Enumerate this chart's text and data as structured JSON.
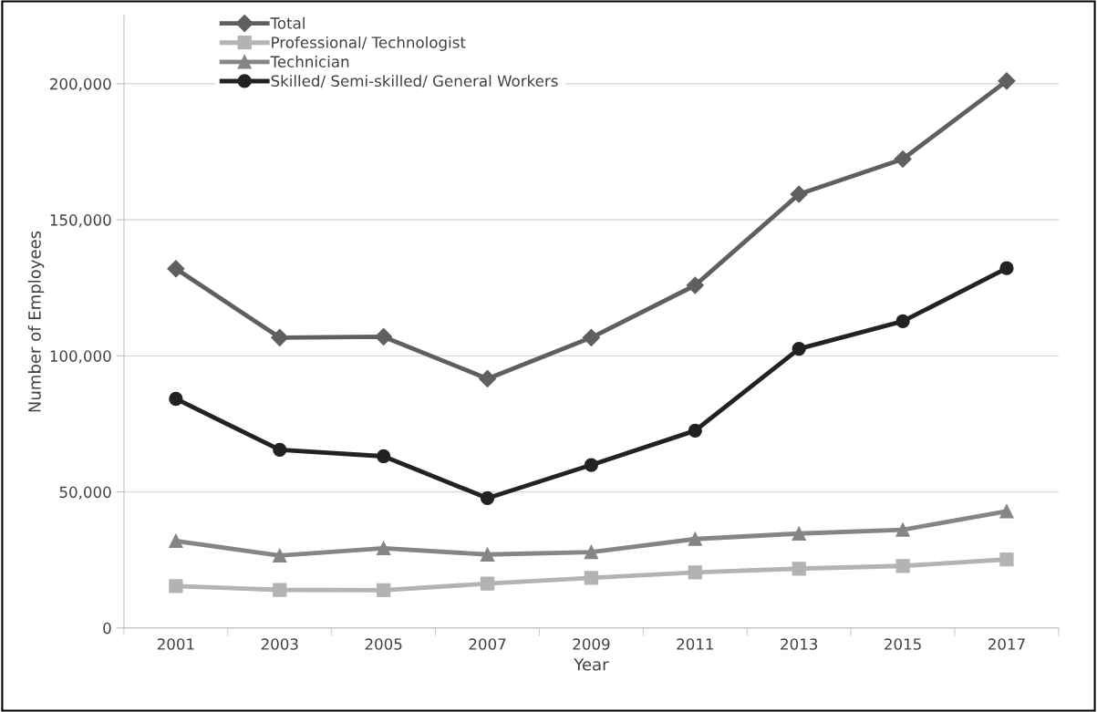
{
  "chart_data": {
    "type": "line",
    "xlabel": "Year",
    "ylabel": "Number of Employees",
    "categories": [
      "2001",
      "2003",
      "2005",
      "2007",
      "2009",
      "2011",
      "2013",
      "2015",
      "2017"
    ],
    "series": [
      {
        "name": "Total",
        "color": "#5f5f5f",
        "marker": "diamond",
        "values": [
          132000,
          106700,
          107000,
          91600,
          106700,
          125900,
          159400,
          172300,
          201000
        ]
      },
      {
        "name": "Professional/ Technologist",
        "color": "#b3b3b3",
        "marker": "square",
        "values": [
          15400,
          14000,
          13900,
          16300,
          18400,
          20400,
          21800,
          22800,
          25200
        ]
      },
      {
        "name": "Technician",
        "color": "#858585",
        "marker": "triangle",
        "values": [
          32000,
          26600,
          29300,
          27000,
          27900,
          32700,
          34700,
          36100,
          42900
        ]
      },
      {
        "name": "Skilled/ Semi-skilled/ General Workers",
        "color": "#222222",
        "marker": "circle",
        "values": [
          84200,
          65500,
          63100,
          47700,
          59900,
          72500,
          102600,
          112700,
          132200
        ]
      }
    ],
    "ylim": [
      0,
      225000
    ],
    "yticks": [
      {
        "value": 0,
        "label": "0"
      },
      {
        "value": 50000,
        "label": "50,000"
      },
      {
        "value": 100000,
        "label": "100,000"
      },
      {
        "value": 150000,
        "label": "150,000"
      },
      {
        "value": 200000,
        "label": "200,000"
      }
    ],
    "grid": "y",
    "legend": "top left",
    "line_style": "solid"
  }
}
